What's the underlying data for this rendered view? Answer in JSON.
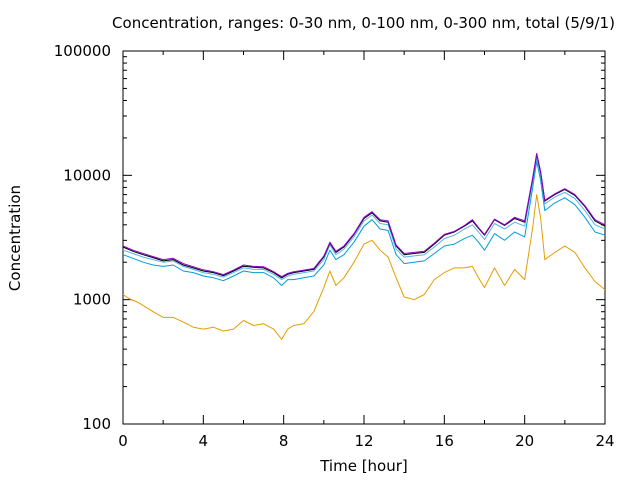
{
  "chart_data": {
    "type": "line",
    "title": "Concentration, ranges: 0-30 nm, 0-100 nm, 0-300 nm, total (5/9/1)",
    "xlabel": "Time [hour]",
    "ylabel": "Concentration",
    "xlim": [
      0,
      24
    ],
    "ylim": [
      100,
      100000
    ],
    "yscale": "log",
    "grid": false,
    "legend": "none",
    "x_ticks": [
      "0",
      "4",
      "8",
      "12",
      "16",
      "20",
      "24"
    ],
    "y_ticks": [
      "100",
      "1000",
      "10000",
      "100000"
    ],
    "series": [
      {
        "color": "#e59e00",
        "points": [
          [
            0,
            1100
          ],
          [
            0.3,
            1020
          ],
          [
            0.7,
            960
          ],
          [
            1,
            900
          ],
          [
            1.5,
            800
          ],
          [
            2,
            720
          ],
          [
            2.5,
            720
          ],
          [
            3,
            660
          ],
          [
            3.5,
            600
          ],
          [
            4,
            580
          ],
          [
            4.5,
            600
          ],
          [
            5,
            560
          ],
          [
            5.5,
            580
          ],
          [
            6,
            680
          ],
          [
            6.5,
            620
          ],
          [
            7,
            640
          ],
          [
            7.5,
            580
          ],
          [
            7.9,
            480
          ],
          [
            8.2,
            580
          ],
          [
            8.5,
            620
          ],
          [
            9,
            640
          ],
          [
            9.5,
            800
          ],
          [
            10,
            1250
          ],
          [
            10.3,
            1700
          ],
          [
            10.6,
            1300
          ],
          [
            11,
            1500
          ],
          [
            11.5,
            2000
          ],
          [
            12,
            2800
          ],
          [
            12.4,
            3000
          ],
          [
            12.8,
            2500
          ],
          [
            13.2,
            2200
          ],
          [
            13.6,
            1500
          ],
          [
            14,
            1050
          ],
          [
            14.5,
            1000
          ],
          [
            15,
            1100
          ],
          [
            15.5,
            1450
          ],
          [
            16,
            1650
          ],
          [
            16.5,
            1800
          ],
          [
            17,
            1800
          ],
          [
            17.4,
            1850
          ],
          [
            17.7,
            1500
          ],
          [
            18,
            1250
          ],
          [
            18.5,
            1800
          ],
          [
            19,
            1300
          ],
          [
            19.5,
            1750
          ],
          [
            20,
            1450
          ],
          [
            20.4,
            3800
          ],
          [
            20.6,
            7000
          ],
          [
            20.8,
            4500
          ],
          [
            21,
            2100
          ],
          [
            21.5,
            2400
          ],
          [
            22,
            2700
          ],
          [
            22.5,
            2400
          ],
          [
            23,
            1800
          ],
          [
            23.5,
            1400
          ],
          [
            24,
            1200
          ]
        ]
      },
      {
        "color": "#009ed7",
        "points": [
          [
            0,
            2300
          ],
          [
            0.5,
            2150
          ],
          [
            1,
            2000
          ],
          [
            1.5,
            1900
          ],
          [
            2,
            1850
          ],
          [
            2.5,
            1900
          ],
          [
            3,
            1700
          ],
          [
            3.5,
            1650
          ],
          [
            4,
            1550
          ],
          [
            4.5,
            1500
          ],
          [
            5,
            1420
          ],
          [
            5.5,
            1550
          ],
          [
            6,
            1700
          ],
          [
            6.5,
            1650
          ],
          [
            7,
            1650
          ],
          [
            7.5,
            1500
          ],
          [
            7.9,
            1300
          ],
          [
            8.2,
            1450
          ],
          [
            8.5,
            1450
          ],
          [
            9,
            1500
          ],
          [
            9.5,
            1550
          ],
          [
            10,
            1900
          ],
          [
            10.3,
            2500
          ],
          [
            10.6,
            2100
          ],
          [
            11,
            2300
          ],
          [
            11.5,
            2900
          ],
          [
            12,
            3900
          ],
          [
            12.4,
            4400
          ],
          [
            12.8,
            3700
          ],
          [
            13.2,
            3600
          ],
          [
            13.6,
            2300
          ],
          [
            14,
            1950
          ],
          [
            14.5,
            2000
          ],
          [
            15,
            2050
          ],
          [
            15.5,
            2350
          ],
          [
            16,
            2700
          ],
          [
            16.5,
            2800
          ],
          [
            17,
            3100
          ],
          [
            17.4,
            3300
          ],
          [
            17.7,
            2900
          ],
          [
            18,
            2500
          ],
          [
            18.5,
            3400
          ],
          [
            19,
            3000
          ],
          [
            19.5,
            3500
          ],
          [
            20,
            3200
          ],
          [
            20.4,
            8000
          ],
          [
            20.6,
            13000
          ],
          [
            20.8,
            9000
          ],
          [
            21,
            5200
          ],
          [
            21.5,
            6000
          ],
          [
            22,
            6600
          ],
          [
            22.5,
            5800
          ],
          [
            23,
            4600
          ],
          [
            23.5,
            3500
          ],
          [
            24,
            3300
          ]
        ]
      },
      {
        "color": "#56b4e9",
        "points": [
          [
            0,
            2500
          ],
          [
            0.5,
            2350
          ],
          [
            1,
            2200
          ],
          [
            1.5,
            2100
          ],
          [
            2,
            2000
          ],
          [
            2.5,
            2050
          ],
          [
            3,
            1850
          ],
          [
            3.5,
            1750
          ],
          [
            4,
            1650
          ],
          [
            4.5,
            1600
          ],
          [
            5,
            1520
          ],
          [
            5.5,
            1650
          ],
          [
            6,
            1800
          ],
          [
            6.5,
            1750
          ],
          [
            7,
            1750
          ],
          [
            7.5,
            1600
          ],
          [
            7.9,
            1450
          ],
          [
            8.2,
            1550
          ],
          [
            8.5,
            1600
          ],
          [
            9,
            1650
          ],
          [
            9.5,
            1700
          ],
          [
            10,
            2100
          ],
          [
            10.3,
            2750
          ],
          [
            10.6,
            2300
          ],
          [
            11,
            2550
          ],
          [
            11.5,
            3200
          ],
          [
            12,
            4300
          ],
          [
            12.4,
            4800
          ],
          [
            12.8,
            4100
          ],
          [
            13.2,
            4000
          ],
          [
            13.6,
            2550
          ],
          [
            14,
            2200
          ],
          [
            14.5,
            2250
          ],
          [
            15,
            2300
          ],
          [
            15.5,
            2650
          ],
          [
            16,
            3100
          ],
          [
            16.5,
            3300
          ],
          [
            17,
            3700
          ],
          [
            17.4,
            4000
          ],
          [
            17.7,
            3500
          ],
          [
            18,
            3050
          ],
          [
            18.5,
            4100
          ],
          [
            19,
            3700
          ],
          [
            19.5,
            4200
          ],
          [
            20,
            3900
          ],
          [
            20.4,
            9000
          ],
          [
            20.6,
            14000
          ],
          [
            20.8,
            10000
          ],
          [
            21,
            5900
          ],
          [
            21.5,
            6700
          ],
          [
            22,
            7300
          ],
          [
            22.5,
            6500
          ],
          [
            23,
            5200
          ],
          [
            23.5,
            4000
          ],
          [
            24,
            3700
          ]
        ]
      },
      {
        "color": "#000000",
        "points": [
          [
            0,
            2650
          ],
          [
            0.5,
            2450
          ],
          [
            1,
            2300
          ],
          [
            1.5,
            2180
          ],
          [
            2,
            2050
          ],
          [
            2.5,
            2100
          ],
          [
            3,
            1900
          ],
          [
            3.5,
            1800
          ],
          [
            4,
            1700
          ],
          [
            4.5,
            1650
          ],
          [
            5,
            1560
          ],
          [
            5.5,
            1700
          ],
          [
            6,
            1860
          ],
          [
            6.5,
            1820
          ],
          [
            7,
            1800
          ],
          [
            7.5,
            1650
          ],
          [
            7.9,
            1500
          ],
          [
            8.2,
            1600
          ],
          [
            8.5,
            1650
          ],
          [
            9,
            1700
          ],
          [
            9.5,
            1750
          ],
          [
            10,
            2200
          ],
          [
            10.3,
            2850
          ],
          [
            10.6,
            2400
          ],
          [
            11,
            2650
          ],
          [
            11.5,
            3350
          ],
          [
            12,
            4500
          ],
          [
            12.4,
            5000
          ],
          [
            12.8,
            4300
          ],
          [
            13.2,
            4200
          ],
          [
            13.6,
            2700
          ],
          [
            14,
            2300
          ],
          [
            14.5,
            2350
          ],
          [
            15,
            2400
          ],
          [
            15.5,
            2800
          ],
          [
            16,
            3300
          ],
          [
            16.5,
            3500
          ],
          [
            17,
            3900
          ],
          [
            17.4,
            4300
          ],
          [
            17.7,
            3750
          ],
          [
            18,
            3300
          ],
          [
            18.5,
            4400
          ],
          [
            19,
            3950
          ],
          [
            19.5,
            4500
          ],
          [
            20,
            4200
          ],
          [
            20.4,
            9400
          ],
          [
            20.6,
            14800
          ],
          [
            20.8,
            10500
          ],
          [
            21,
            6200
          ],
          [
            21.5,
            7000
          ],
          [
            22,
            7700
          ],
          [
            22.5,
            6900
          ],
          [
            23,
            5600
          ],
          [
            23.5,
            4300
          ],
          [
            24,
            3900
          ]
        ]
      },
      {
        "color": "#9400d3",
        "points": [
          [
            0,
            2700
          ],
          [
            0.5,
            2500
          ],
          [
            1,
            2350
          ],
          [
            1.5,
            2220
          ],
          [
            2,
            2100
          ],
          [
            2.5,
            2150
          ],
          [
            3,
            1950
          ],
          [
            3.5,
            1840
          ],
          [
            4,
            1740
          ],
          [
            4.5,
            1680
          ],
          [
            5,
            1590
          ],
          [
            5.5,
            1730
          ],
          [
            6,
            1900
          ],
          [
            6.5,
            1850
          ],
          [
            7,
            1840
          ],
          [
            7.5,
            1680
          ],
          [
            7.9,
            1530
          ],
          [
            8.2,
            1630
          ],
          [
            8.5,
            1680
          ],
          [
            9,
            1730
          ],
          [
            9.5,
            1780
          ],
          [
            10,
            2240
          ],
          [
            10.3,
            2900
          ],
          [
            10.6,
            2450
          ],
          [
            11,
            2700
          ],
          [
            11.5,
            3400
          ],
          [
            12,
            4600
          ],
          [
            12.4,
            5100
          ],
          [
            12.8,
            4400
          ],
          [
            13.2,
            4300
          ],
          [
            13.6,
            2750
          ],
          [
            14,
            2350
          ],
          [
            14.5,
            2400
          ],
          [
            15,
            2450
          ],
          [
            15.5,
            2850
          ],
          [
            16,
            3350
          ],
          [
            16.5,
            3550
          ],
          [
            17,
            3950
          ],
          [
            17.4,
            4400
          ],
          [
            17.7,
            3800
          ],
          [
            18,
            3350
          ],
          [
            18.5,
            4450
          ],
          [
            19,
            4000
          ],
          [
            19.5,
            4600
          ],
          [
            20,
            4300
          ],
          [
            20.4,
            9600
          ],
          [
            20.6,
            15000
          ],
          [
            20.8,
            10700
          ],
          [
            21,
            6300
          ],
          [
            21.5,
            7100
          ],
          [
            22,
            7800
          ],
          [
            22.5,
            7000
          ],
          [
            23,
            5700
          ],
          [
            23.5,
            4400
          ],
          [
            24,
            4000
          ]
        ]
      }
    ]
  }
}
